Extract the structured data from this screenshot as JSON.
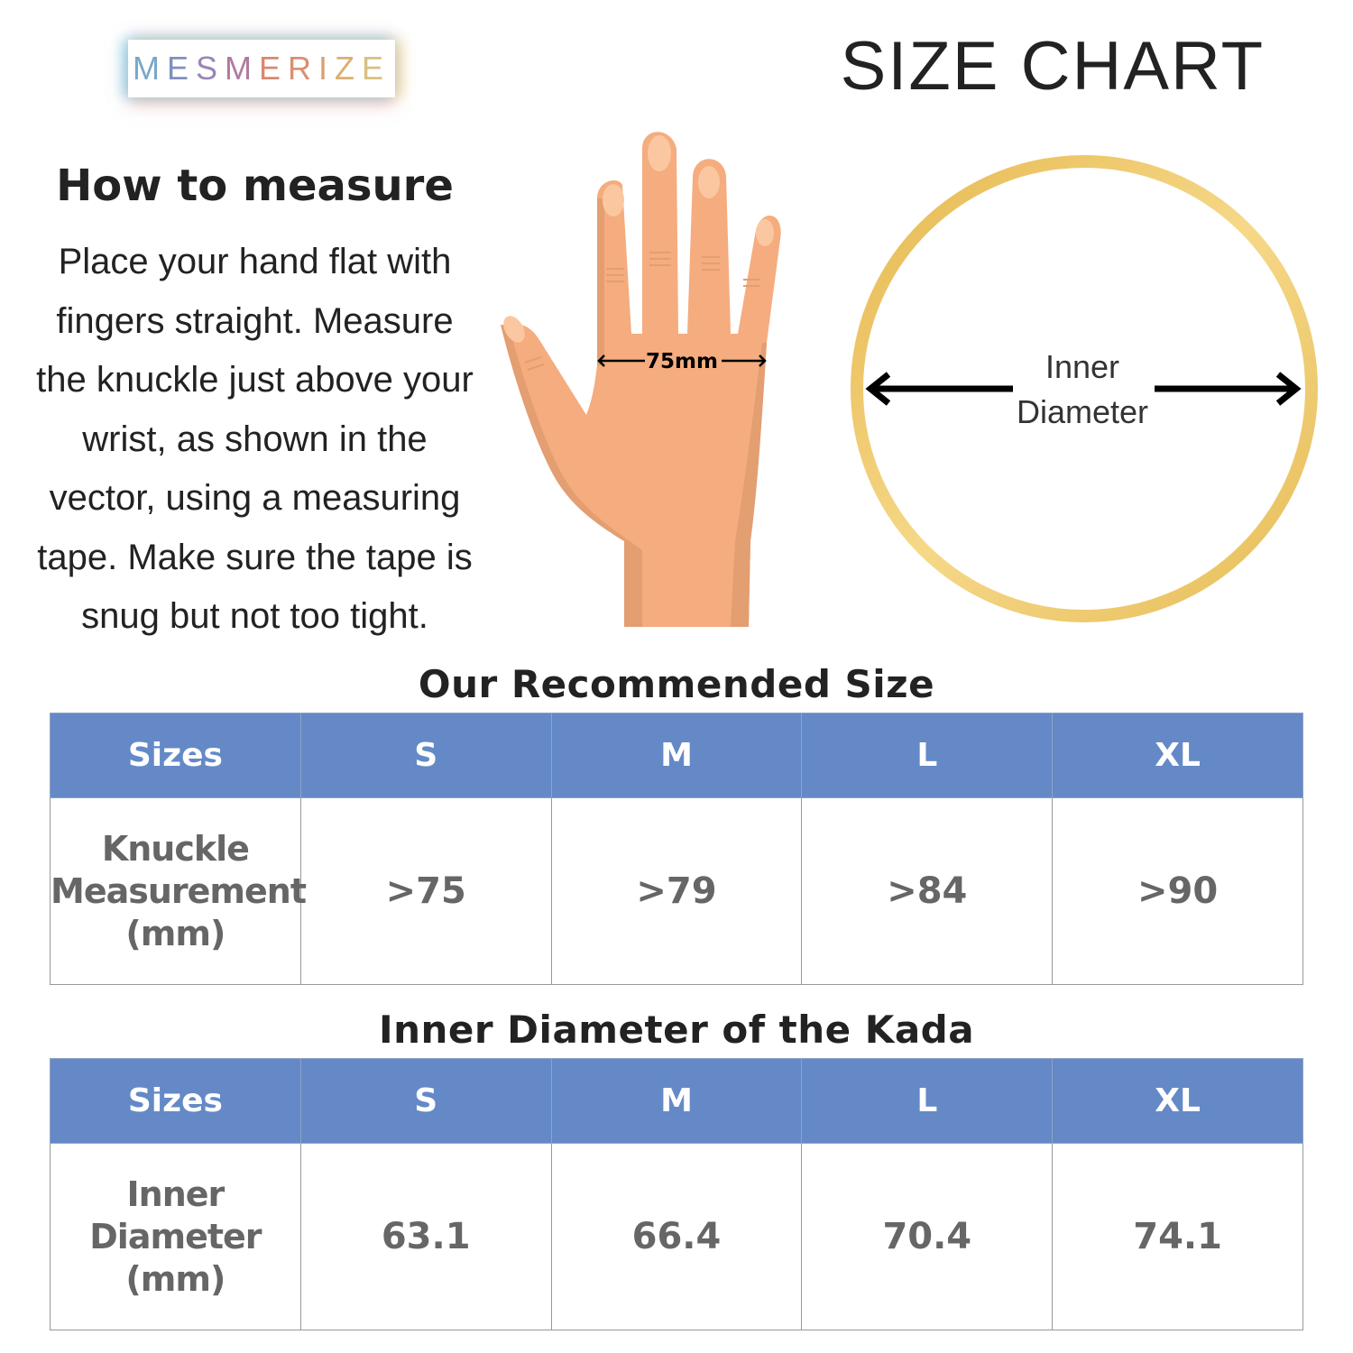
{
  "logo": {
    "text": "MESMERIZE",
    "letter_colors": [
      "#7aa7c7",
      "#7f8fc0",
      "#9a86b8",
      "#b07aa0",
      "#d98870",
      "#d99070",
      "#dba070",
      "#d9b070",
      "#d8c080"
    ]
  },
  "header": {
    "title": "SIZE CHART"
  },
  "how_to": {
    "heading": "How to measure",
    "text": "Place your hand flat with fingers straight. Measure the knuckle just above your wrist, as shown in the vector, using a measuring tape. Make sure the tape is snug but not too tight."
  },
  "hand": {
    "measurement_label": "75mm"
  },
  "ring": {
    "label_line1": "Inner",
    "label_line2": "Diameter"
  },
  "colors": {
    "header_bg": "#6489c6",
    "ring_gold": "#e8c060",
    "skin": "#f5ac7e"
  },
  "recommended": {
    "title": "Our Recommended Size",
    "headers": [
      "Sizes",
      "S",
      "M",
      "L",
      "XL"
    ],
    "row_label": [
      "Knuckle",
      "Measurement",
      "(mm)"
    ],
    "values": [
      ">75",
      ">79",
      ">84",
      ">90"
    ]
  },
  "diameter": {
    "title": "Inner Diameter of the Kada",
    "headers": [
      "Sizes",
      "S",
      "M",
      "L",
      "XL"
    ],
    "row_label": [
      "Inner",
      "Diameter",
      "(mm)"
    ],
    "values": [
      "63.1",
      "66.4",
      "70.4",
      "74.1"
    ]
  }
}
